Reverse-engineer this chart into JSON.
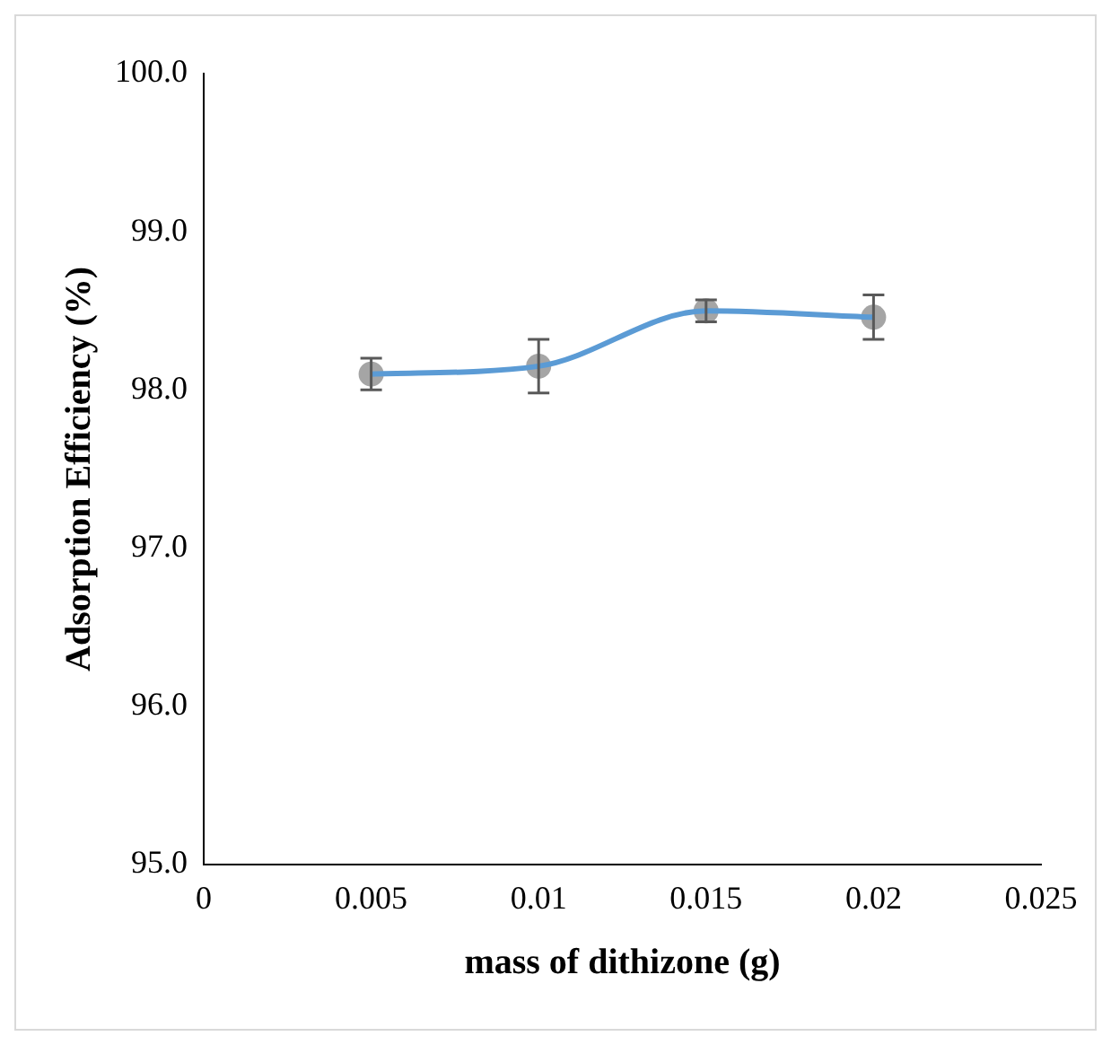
{
  "chart_data": {
    "type": "line",
    "xlabel": "mass of dithizone (g)",
    "ylabel": "Adsorption Efficiency (%)",
    "x": [
      0.005,
      0.01,
      0.015,
      0.02
    ],
    "series": [
      {
        "type": "line",
        "color": "#5b9bd5",
        "values": [
          98.1,
          98.15,
          98.5,
          98.46
        ]
      },
      {
        "type": "scatter",
        "color": "#a5a5a5",
        "marker": "circle",
        "values": [
          98.1,
          98.15,
          98.5,
          98.46
        ],
        "errors": [
          0.1,
          0.17,
          0.07,
          0.14
        ]
      }
    ],
    "xlim": [
      0,
      0.025
    ],
    "xticks": [
      0,
      0.005,
      0.01,
      0.015,
      0.02,
      0.025
    ],
    "ylim": [
      95,
      100
    ],
    "yticks": [
      {
        "value": 95,
        "label": "95.0"
      },
      {
        "value": 96,
        "label": "96.0"
      },
      {
        "value": 97,
        "label": "97.0"
      },
      {
        "value": 98,
        "label": "98.0"
      },
      {
        "value": 99,
        "label": "99.0"
      },
      {
        "value": 100,
        "label": "100.0"
      }
    ],
    "grid": false,
    "legend": false
  }
}
